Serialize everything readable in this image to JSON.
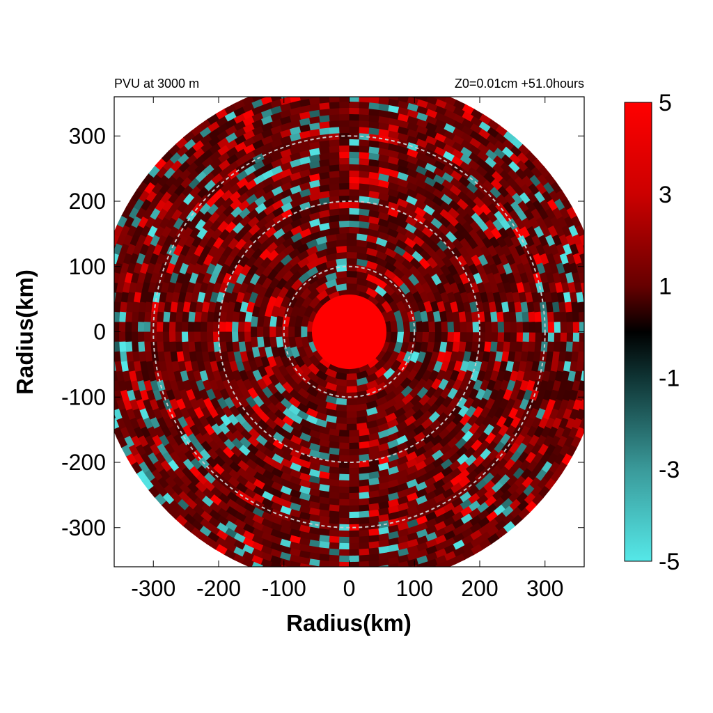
{
  "chart_data": {
    "type": "heatmap",
    "title_left": "PVU at  3000 m",
    "title_right": "Z0=0.01cm  +51.0hours",
    "xlabel": "Radius(km)",
    "ylabel": "Radius(km)",
    "xlim": [
      -360,
      360
    ],
    "ylim": [
      -360,
      360
    ],
    "x_ticks": [
      -300,
      -200,
      -100,
      0,
      100,
      200,
      300
    ],
    "y_ticks": [
      -300,
      -200,
      -100,
      0,
      100,
      200,
      300
    ],
    "tick_labels_x": [
      "-300",
      "-200",
      "-100",
      "0",
      "100",
      "200",
      "300"
    ],
    "tick_labels_y": [
      "300",
      "200",
      "100",
      "0",
      "-100",
      "-200",
      "-300"
    ],
    "domain_radius_km": 390,
    "core_radius_km": 55,
    "reference_circles_km": [
      100,
      200,
      300
    ],
    "colorbar": {
      "range": [
        -5,
        5
      ],
      "labels": [
        "5",
        "3",
        "1",
        "-1",
        "-3",
        "-5"
      ],
      "label_values": [
        5,
        3,
        1,
        -1,
        -3,
        -5
      ],
      "colors": {
        "min": "#55e8e8",
        "mid": "#000000",
        "max": "#ff0000"
      }
    }
  }
}
